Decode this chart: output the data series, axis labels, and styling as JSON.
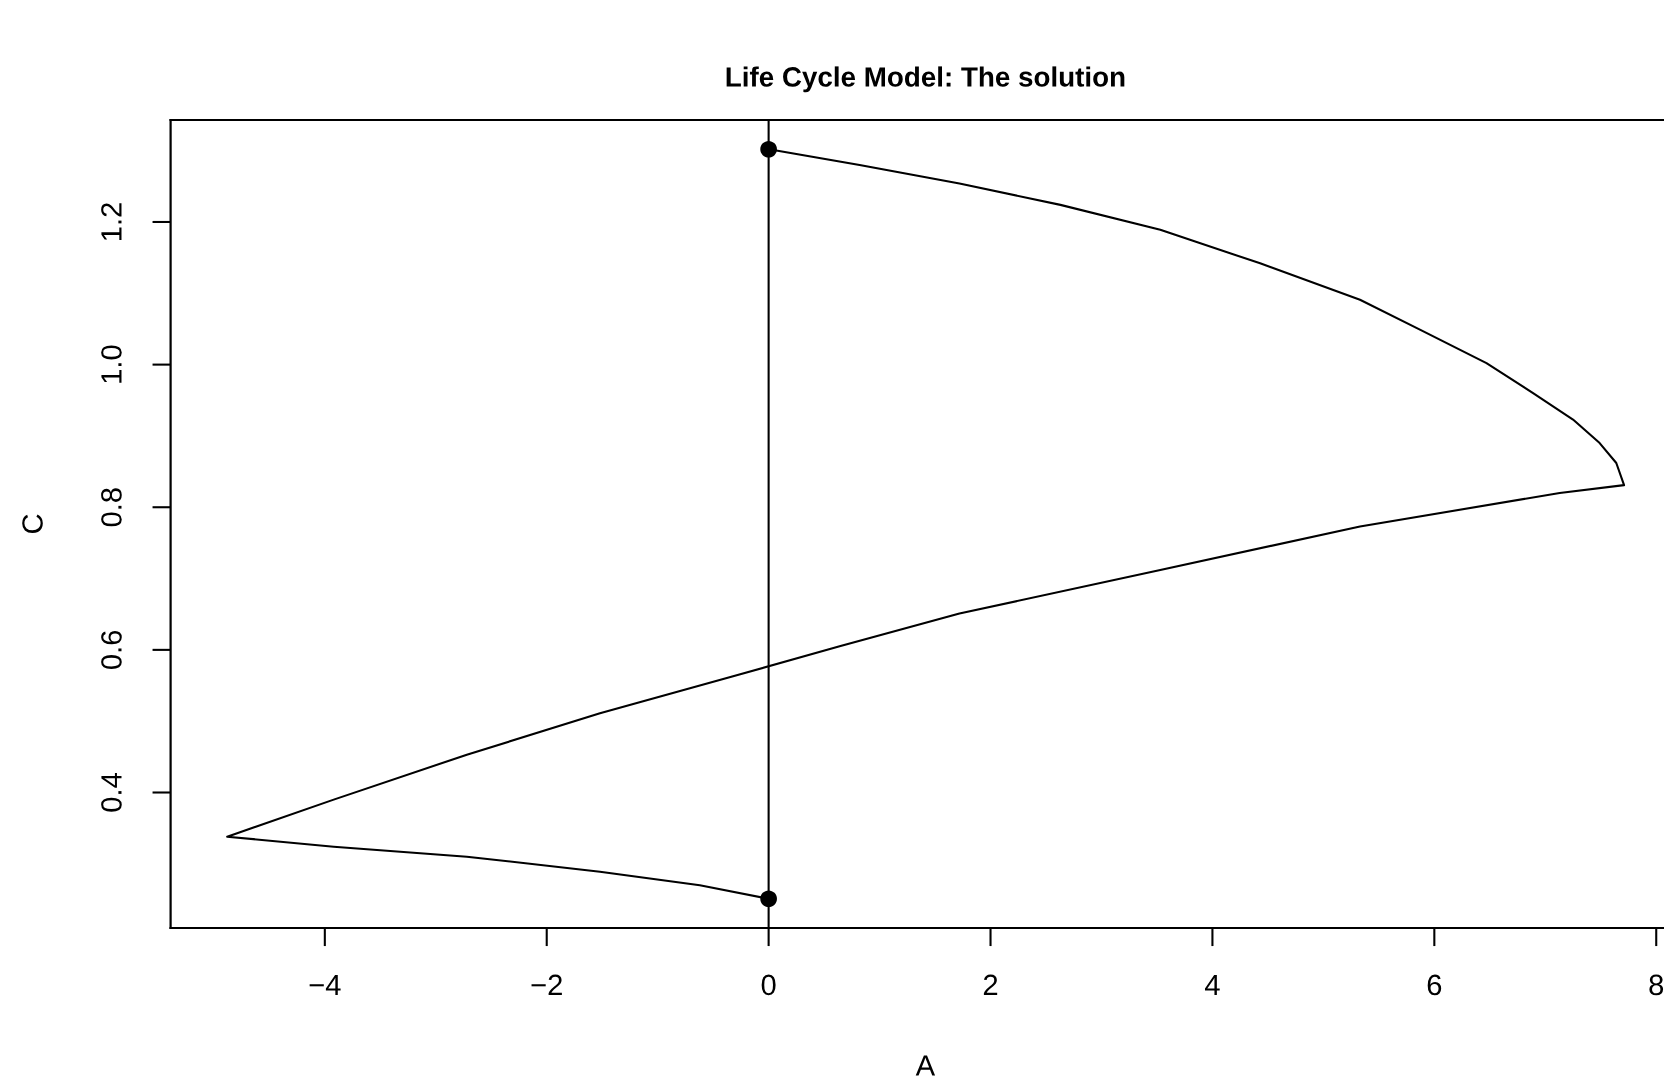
{
  "chart_data": {
    "type": "line",
    "title": "Life Cycle Model: The solution",
    "xlabel": "A",
    "ylabel": "C",
    "xlim": [
      -5.39,
      8.07
    ],
    "ylim": [
      0.21,
      1.343
    ],
    "xticks": [
      {
        "value": -4,
        "label": "−4"
      },
      {
        "value": -2,
        "label": "−2"
      },
      0,
      2,
      4,
      6,
      8
    ],
    "yticks": [
      0.4,
      0.6,
      0.8,
      {
        "value": 1,
        "label": "1.0"
      },
      1.2
    ],
    "series": [
      {
        "color": "#000000",
        "marker": "none",
        "x": [
          0,
          -0.62,
          -1.52,
          -2.72,
          -3.92,
          -4.88,
          -3.92,
          -2.72,
          -1.52,
          -0.32,
          0.64,
          1.72,
          3.53,
          5.33,
          7.13,
          7.71,
          7.64,
          7.49,
          7.25,
          6.89,
          6.47,
          5.87,
          5.33,
          4.43,
          3.53,
          2.63,
          1.72,
          0.82,
          0
        ],
        "values": [
          0.251,
          0.27,
          0.289,
          0.31,
          0.324,
          0.338,
          0.39,
          0.453,
          0.511,
          0.563,
          0.605,
          0.651,
          0.712,
          0.773,
          0.82,
          0.831,
          0.862,
          0.89,
          0.923,
          0.96,
          1.002,
          1.049,
          1.091,
          1.142,
          1.189,
          1.224,
          1.254,
          1.28,
          1.302
        ]
      },
      {
        "type": "scatter",
        "color": "#000000",
        "marker": "circle",
        "x": [
          0,
          0
        ],
        "values": [
          1.302,
          0.251
        ]
      }
    ],
    "ref_lines": [
      {
        "axis": "x",
        "value": 0,
        "color": "#000000"
      }
    ]
  }
}
